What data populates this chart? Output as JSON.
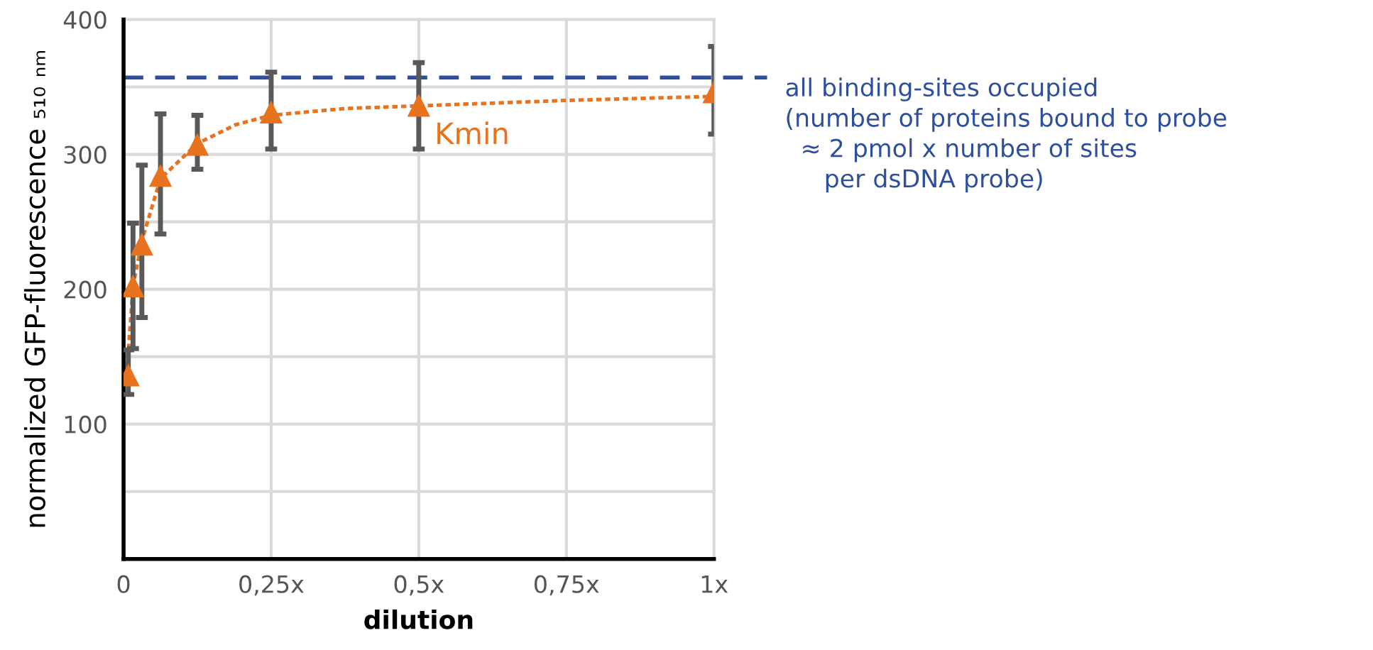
{
  "chart_data": {
    "type": "scatter",
    "xlabel": "dilution",
    "ylabel": "normalized GFP-fluorescence ₅₁₀ ₙₘ",
    "xlim": [
      0,
      1
    ],
    "ylim": [
      0,
      400
    ],
    "xticks": [
      0,
      {
        "value": 0.25,
        "label": "0,25x"
      },
      {
        "value": 0.5,
        "label": "0,5x"
      },
      {
        "value": 0.75,
        "label": "0,75x"
      },
      {
        "value": 1,
        "label": "1x"
      }
    ],
    "yticks": [
      {
        "value": 0,
        "label": null
      },
      {
        "value": 50,
        "label": null
      },
      100,
      {
        "value": 150,
        "label": null
      },
      200,
      {
        "value": 250,
        "label": null
      },
      300,
      {
        "value": 350,
        "label": null
      },
      400
    ],
    "grid": true,
    "series": [
      {
        "marker": "triangle",
        "color": "#e8731f",
        "x": [
          0.008,
          0.016,
          0.031,
          0.0625,
          0.125,
          0.25,
          0.5,
          1
        ],
        "values": [
          136,
          202,
          233,
          284,
          307,
          331,
          336,
          346
        ],
        "errors": [
          [
            122,
            155
          ],
          [
            156,
            249
          ],
          [
            179,
            292
          ],
          [
            241,
            330
          ],
          [
            289,
            329
          ],
          [
            304,
            361
          ],
          [
            304,
            368
          ],
          [
            315,
            380
          ]
        ]
      },
      {
        "type": "line",
        "line_style": "dotted",
        "marker": "none",
        "color": "#e8731f",
        "x": [
          0.005,
          0.016,
          0.031,
          0.0625,
          0.125,
          0.19,
          0.25,
          0.375,
          0.5,
          0.75,
          1
        ],
        "values": [
          136,
          202,
          236,
          282,
          308,
          322,
          329,
          334,
          336,
          340,
          343
        ]
      }
    ],
    "ref_lines": [
      {
        "axis": "y",
        "value": 357,
        "color": "#2e4f9c",
        "line_style": "dashed",
        "label": "all binding-sites occupied\n(number of proteins bound to probe\n  ≈ 2 pmol x number of sites\n     per dsDNA probe)"
      }
    ],
    "annotations": [
      {
        "text": "Kmin",
        "x": 0.5,
        "y": 336
      }
    ]
  }
}
